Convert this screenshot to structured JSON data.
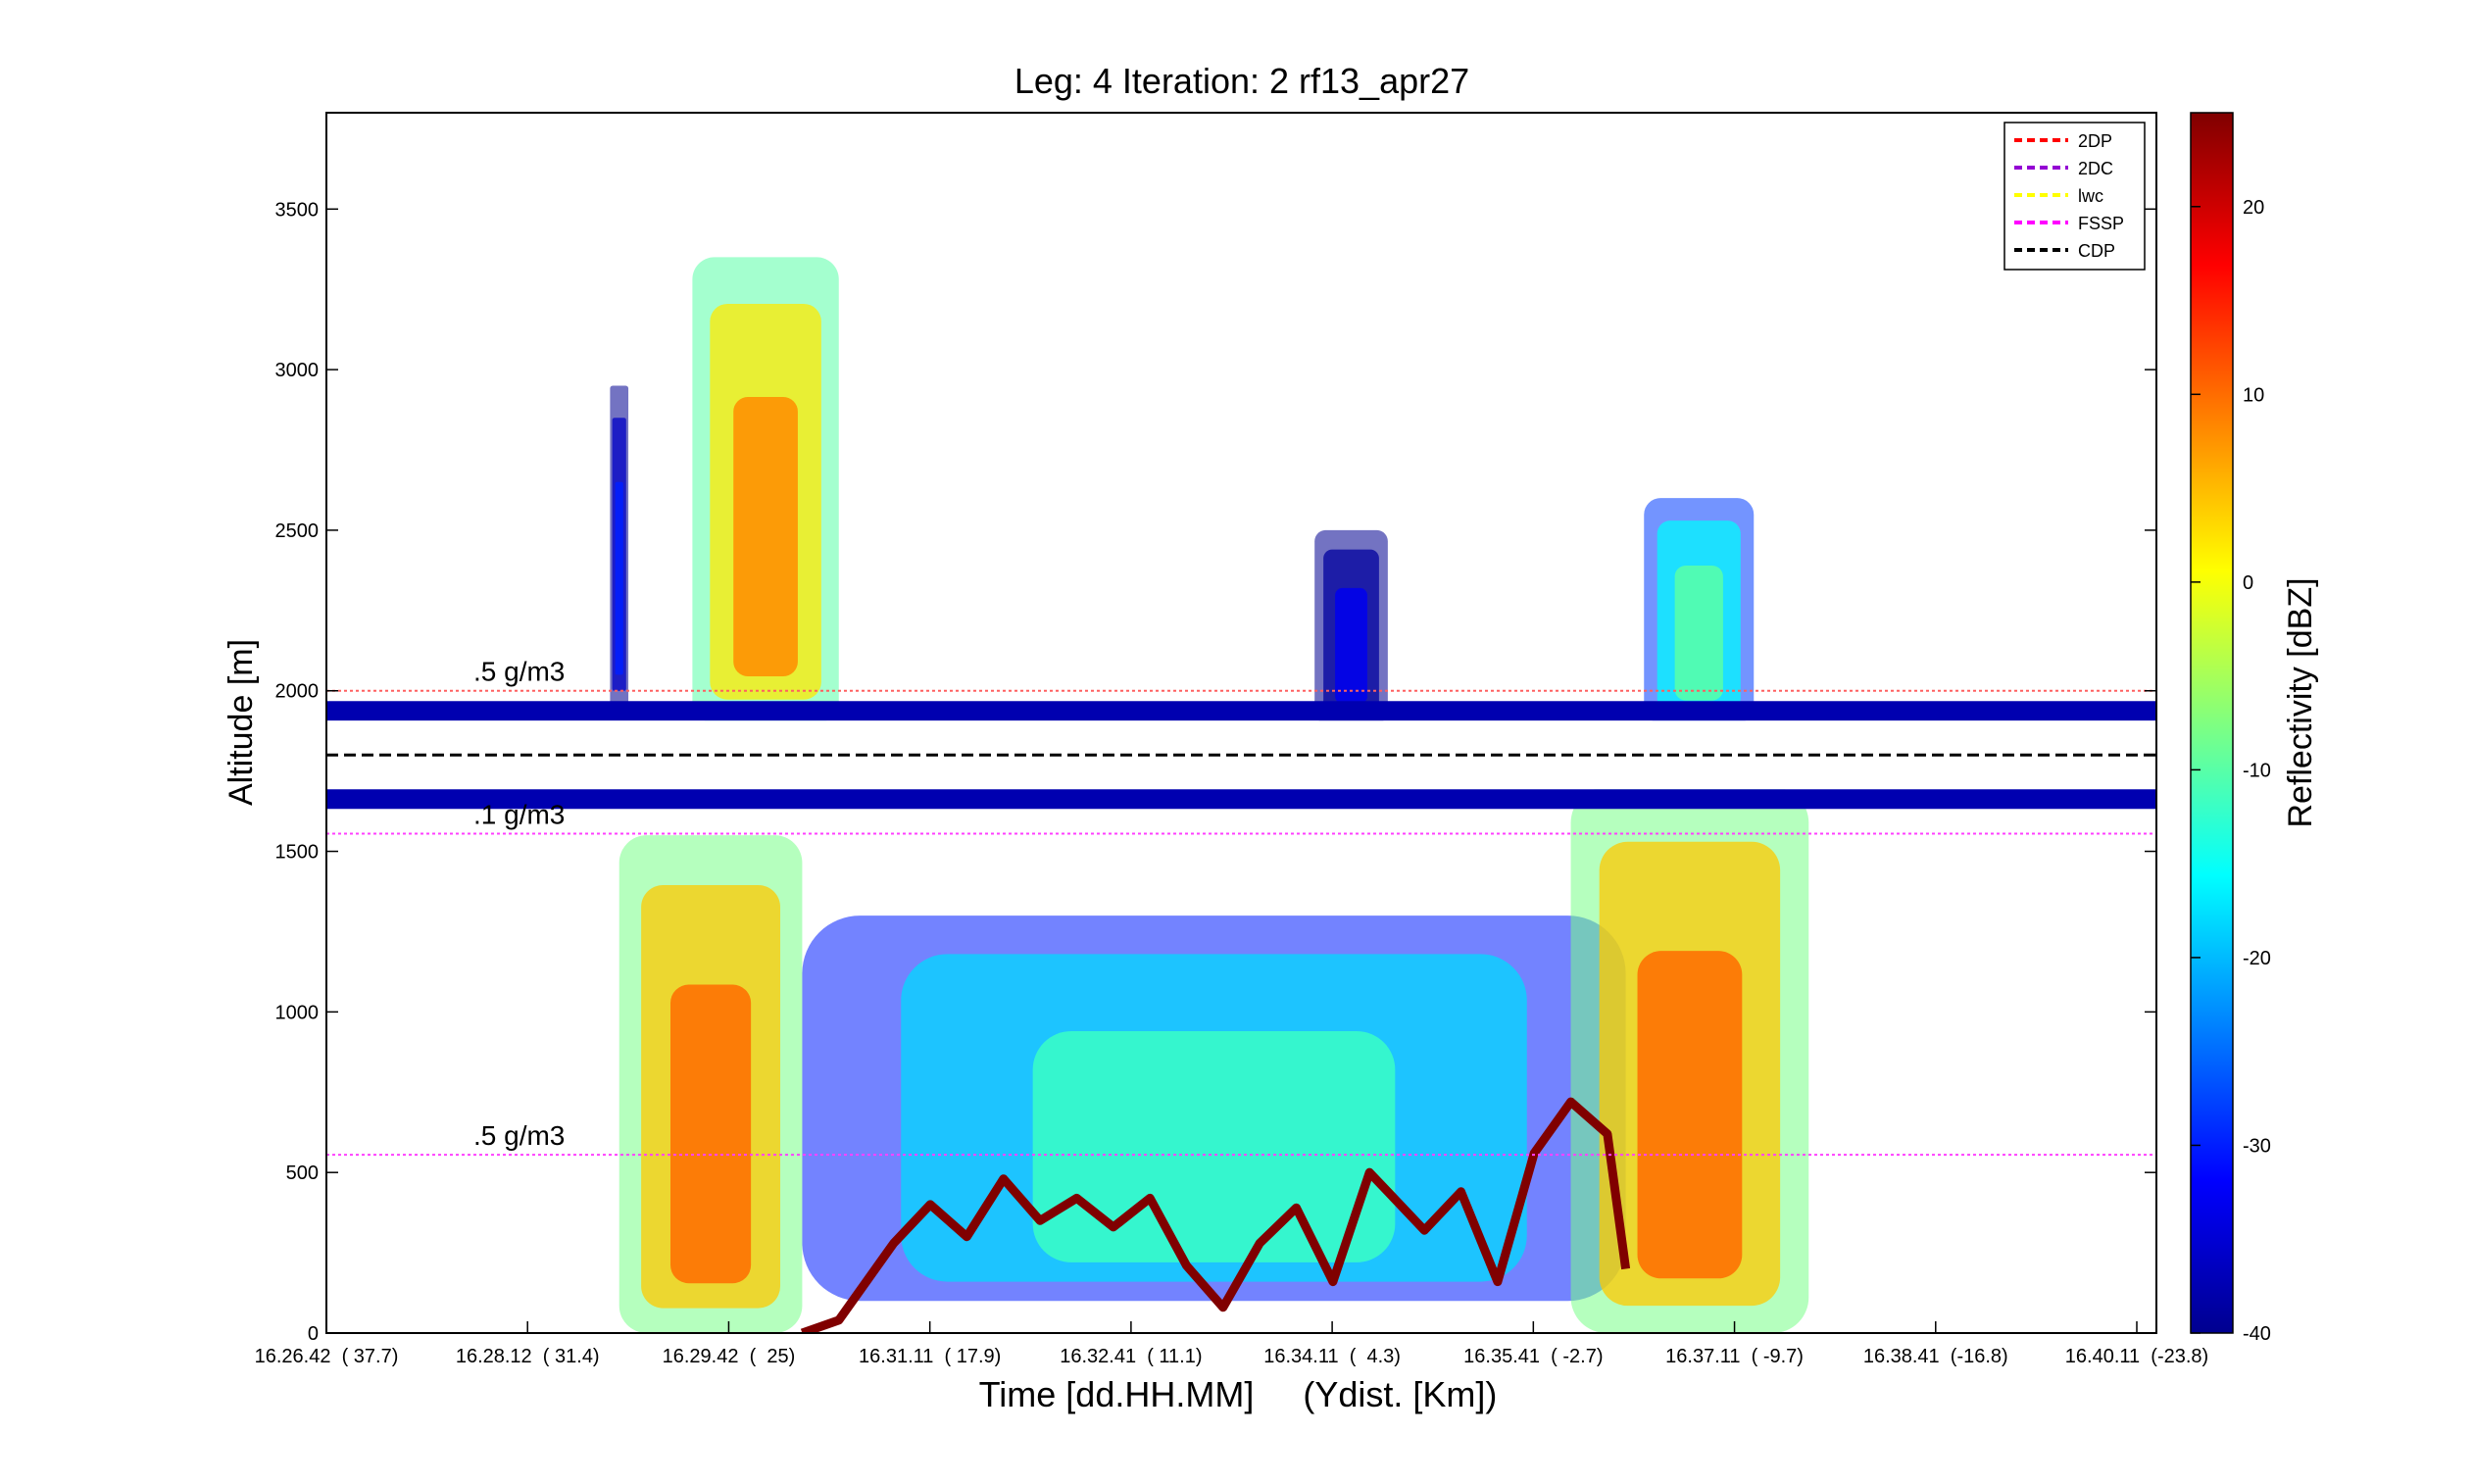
{
  "chart_data": {
    "type": "heatmap",
    "title": "Leg: 4  Iteration: 2  rf13_apr27",
    "xlabel": "Time [dd.HH.MM]     (Ydist. [Km])",
    "ylabel": "Altitude [m]",
    "colorbar_label": "Reflectivity [dBZ]",
    "ylim": [
      0,
      3800
    ],
    "y_ticks": [
      0,
      500,
      1000,
      1500,
      2000,
      2500,
      3000,
      3500
    ],
    "x_ticks": [
      "16.26.42  ( 37.7)",
      "16.28.12  ( 31.4)",
      "16.29.42  (  25)",
      "16.31.11  ( 17.9)",
      "16.32.41  ( 11.1)",
      "16.34.11  (  4.3)",
      "16.35.41  ( -2.7)",
      "16.37.11  ( -9.7)",
      "16.38.41  (-16.8)",
      "16.40.11  (-23.8)"
    ],
    "colorbar_range": [
      -40,
      25
    ],
    "colorbar_ticks": [
      -40,
      -30,
      -20,
      -10,
      0,
      10,
      20
    ],
    "colormap": [
      "#00008f",
      "#0000ff",
      "#0080ff",
      "#00ffff",
      "#80ff80",
      "#ffff00",
      "#ff8000",
      "#ff0000",
      "#800000"
    ],
    "annotations": [
      {
        "text": ".5 g/m3",
        "altitude": 2000,
        "line_color": "#ff6060"
      },
      {
        "text": ".1 g/m3",
        "altitude": 1555,
        "line_color": "#ff40ff"
      },
      {
        "text": ".5 g/m3",
        "altitude": 555,
        "line_color": "#ff40ff"
      }
    ],
    "flight_altitude": 1800,
    "legend": {
      "position": "top-right",
      "entries": [
        {
          "label": "2DP",
          "color": "#ff0000",
          "style": "dashed"
        },
        {
          "label": "2DC",
          "color": "#9400d3",
          "style": "dashed"
        },
        {
          "label": "lwc",
          "color": "#ffff00",
          "style": "dashed"
        },
        {
          "label": "FSSP",
          "color": "#ff00ff",
          "style": "dashed"
        },
        {
          "label": "CDP",
          "color": "#000000",
          "style": "dashed"
        }
      ]
    },
    "cloud_cells": [
      {
        "x_range": [
          0.155,
          0.165
        ],
        "alt_range": [
          1950,
          2950
        ],
        "dbz": -30
      },
      {
        "x_range": [
          0.2,
          0.28
        ],
        "alt_range": [
          1900,
          3350
        ],
        "dbz": 8
      },
      {
        "x_range": [
          0.16,
          0.26
        ],
        "alt_range": [
          0,
          1550
        ],
        "dbz": 10
      },
      {
        "x_range": [
          0.26,
          0.71
        ],
        "alt_range": [
          100,
          1300
        ],
        "dbz": -12
      },
      {
        "x_range": [
          0.54,
          0.58
        ],
        "alt_range": [
          1900,
          2500
        ],
        "dbz": -33
      },
      {
        "x_range": [
          0.68,
          0.81
        ],
        "alt_range": [
          0,
          1700
        ],
        "dbz": 10
      },
      {
        "x_range": [
          0.72,
          0.78
        ],
        "alt_range": [
          1900,
          2600
        ],
        "dbz": -10
      }
    ],
    "boundary_layer_top": [
      [
        0.26,
        0
      ],
      [
        0.28,
        40
      ],
      [
        0.31,
        280
      ],
      [
        0.33,
        400
      ],
      [
        0.35,
        300
      ],
      [
        0.37,
        480
      ],
      [
        0.39,
        350
      ],
      [
        0.41,
        420
      ],
      [
        0.43,
        330
      ],
      [
        0.45,
        420
      ],
      [
        0.47,
        210
      ],
      [
        0.49,
        80
      ],
      [
        0.51,
        280
      ],
      [
        0.53,
        390
      ],
      [
        0.55,
        160
      ],
      [
        0.57,
        500
      ],
      [
        0.58,
        440
      ],
      [
        0.6,
        320
      ],
      [
        0.62,
        440
      ],
      [
        0.64,
        160
      ],
      [
        0.66,
        560
      ],
      [
        0.68,
        720
      ],
      [
        0.7,
        620
      ],
      [
        0.71,
        200
      ]
    ]
  }
}
